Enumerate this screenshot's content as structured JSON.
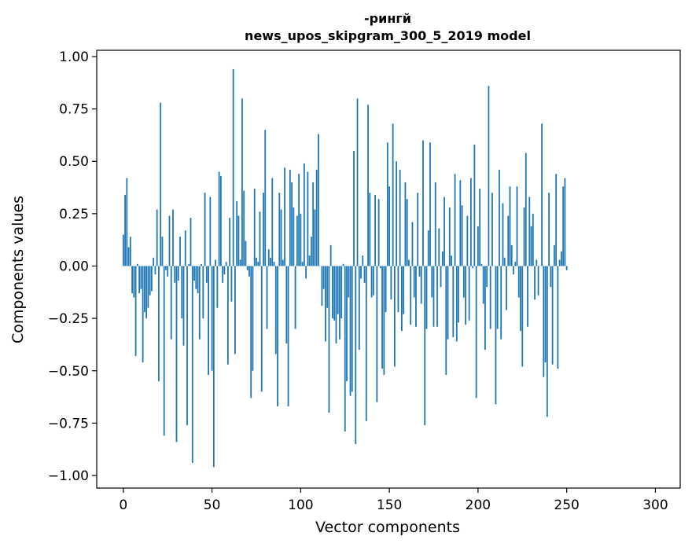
{
  "chart_data": {
    "type": "bar",
    "title_line1": "-рингй",
    "title_line2": "news_upos_skipgram_300_5_2019 model",
    "xlabel": "Vector components",
    "ylabel": "Components values",
    "xlim": [
      -15,
      314
    ],
    "ylim": [
      -1.06,
      1.03
    ],
    "x_ticks": [
      0,
      50,
      100,
      150,
      200,
      250,
      300
    ],
    "x_tick_labels": [
      "0",
      "50",
      "100",
      "150",
      "200",
      "250",
      "300"
    ],
    "y_ticks": [
      1.0,
      0.75,
      0.5,
      0.25,
      0.0,
      -0.25,
      -0.5,
      -0.75,
      -1.0
    ],
    "y_tick_labels": [
      "1.00",
      "0.75",
      "0.50",
      "0.25",
      "0.00",
      "−0.25",
      "−0.50",
      "−0.75",
      "−1.00"
    ],
    "bar_color": "#1f77b4",
    "values": [
      0.15,
      0.34,
      0.42,
      0.09,
      0.14,
      -0.13,
      -0.15,
      -0.43,
      0.01,
      -0.13,
      -0.11,
      -0.46,
      -0.22,
      -0.25,
      -0.2,
      -0.14,
      -0.12,
      0.04,
      -0.04,
      0.27,
      -0.55,
      0.78,
      0.14,
      -0.81,
      -0.02,
      -0.05,
      0.24,
      -0.35,
      0.27,
      -0.08,
      -0.84,
      -0.07,
      0.14,
      -0.25,
      -0.38,
      0.17,
      -0.76,
      0.01,
      0.23,
      -0.94,
      -0.07,
      -0.11,
      -0.13,
      -0.35,
      0.01,
      -0.25,
      0.35,
      -0.08,
      -0.52,
      0.33,
      -0.5,
      -0.96,
      0.03,
      -0.2,
      0.45,
      0.43,
      -0.08,
      -0.04,
      0.02,
      -0.47,
      0.23,
      -0.17,
      0.94,
      -0.42,
      0.31,
      0.24,
      0.03,
      0.8,
      0.36,
      0.12,
      -0.02,
      -0.05,
      -0.63,
      -0.5,
      0.37,
      0.04,
      0.02,
      0.26,
      -0.6,
      0.35,
      0.65,
      -0.3,
      0.08,
      0.04,
      0.42,
      0.02,
      -0.42,
      -0.67,
      0.35,
      0.27,
      0.03,
      0.47,
      -0.37,
      -0.67,
      0.46,
      0.4,
      0.28,
      -0.3,
      0.24,
      0.44,
      0.25,
      0.02,
      0.49,
      -0.06,
      0.45,
      0.05,
      0.14,
      0.4,
      0.27,
      0.46,
      0.63,
      0.0,
      -0.19,
      -0.11,
      -0.36,
      -0.2,
      -0.7,
      0.1,
      -0.25,
      -0.26,
      -0.37,
      -0.23,
      -0.35,
      -0.25,
      0.01,
      -0.79,
      -0.55,
      -0.15,
      -0.62,
      -0.6,
      0.55,
      -0.85,
      0.8,
      -0.4,
      -0.06,
      0.05,
      -0.08,
      -0.74,
      0.77,
      0.35,
      -0.15,
      -0.14,
      0.34,
      -0.65,
      0.32,
      -0.01,
      -0.49,
      -0.52,
      -0.22,
      0.59,
      0.38,
      -0.16,
      0.68,
      -0.48,
      0.5,
      -0.22,
      0.46,
      -0.31,
      -0.23,
      0.4,
      0.32,
      0.03,
      -0.28,
      0.21,
      -0.15,
      -0.29,
      0.35,
      -0.05,
      -0.18,
      0.6,
      -0.76,
      -0.3,
      0.17,
      0.59,
      -0.15,
      -0.29,
      0.4,
      -0.29,
      0.18,
      -0.1,
      0.07,
      0.33,
      -0.52,
      -0.35,
      0.28,
      0.05,
      -0.34,
      0.44,
      -0.36,
      -0.27,
      0.41,
      0.29,
      -0.15,
      -0.28,
      0.24,
      -0.26,
      0.42,
      -0.01,
      0.58,
      -0.63,
      0.19,
      0.37,
      0.01,
      -0.18,
      -0.4,
      -0.1,
      0.86,
      -0.3,
      0.35,
      0.0,
      -0.66,
      -0.3,
      0.46,
      -0.35,
      0.3,
      0.04,
      -0.21,
      0.24,
      0.38,
      0.1,
      -0.04,
      0.02,
      0.38,
      -0.15,
      -0.31,
      -0.48,
      0.28,
      0.54,
      -0.29,
      0.33,
      0.19,
      0.25,
      -0.16,
      0.03,
      -0.14,
      0.0,
      0.68,
      -0.53,
      -0.46,
      -0.72,
      0.35,
      -0.1,
      -0.47,
      0.1,
      0.44,
      -0.49,
      0.03,
      0.07,
      0.38,
      0.42,
      -0.02
    ]
  }
}
